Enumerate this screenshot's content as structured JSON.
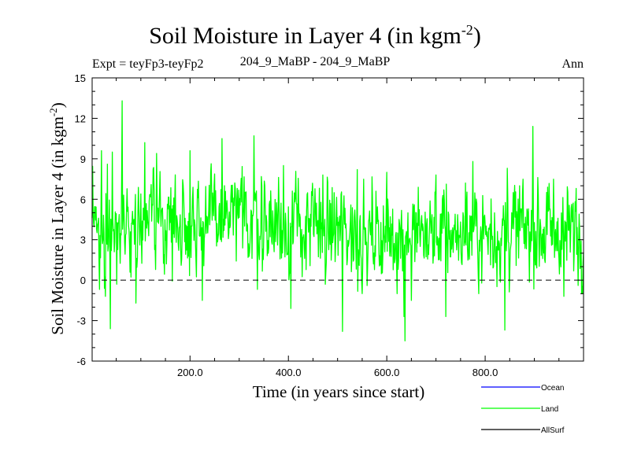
{
  "header": {
    "title_main": "Soil Moisture in Layer 4 (in kgm",
    "title_sup": "-2",
    "title_close": ")",
    "expt": "Expt = teyFp3-teyFp2",
    "period": "204_9_MaBP - 204_9_MaBP",
    "season": "Ann"
  },
  "chart_data": {
    "type": "line",
    "title": "Soil Moisture in Layer 4 (in kgm-2)",
    "xlabel": "Time (in years since start)",
    "ylabel_main": "Soil Moisture in Layer 4 (in kgm",
    "ylabel_sup": "-2",
    "ylabel_close": ")",
    "xlim": [
      1,
      1000
    ],
    "ylim": [
      -6,
      15
    ],
    "xticks": [
      200,
      400,
      600,
      800
    ],
    "xtick_labels": [
      "200.0",
      "400.0",
      "600.0",
      "800.0"
    ],
    "yticks": [
      -6,
      -3,
      0,
      3,
      6,
      9,
      12,
      15
    ],
    "ytick_labels": [
      "-6",
      "-3",
      "0",
      "3",
      "6",
      "9",
      "12",
      "15"
    ],
    "zero_line": "dashed",
    "legend": [
      {
        "name": "Ocean",
        "color": "#0000ff"
      },
      {
        "name": "Land",
        "color": "#00ff00"
      },
      {
        "name": "AllSurf",
        "color": "#000000"
      }
    ],
    "series": [
      {
        "name": "Land",
        "color": "#00ff00",
        "n_points": 1000,
        "mean_profile": [
          [
            1,
            3.9
          ],
          [
            100,
            4.4
          ],
          [
            200,
            4.4
          ],
          [
            300,
            4.6
          ],
          [
            400,
            4.0
          ],
          [
            500,
            3.7
          ],
          [
            600,
            3.3
          ],
          [
            700,
            3.5
          ],
          [
            800,
            3.4
          ],
          [
            900,
            3.8
          ],
          [
            1000,
            3.5
          ]
        ],
        "noise_sd": 2.0,
        "extremes": [
          [
            20,
            9.6
          ],
          [
            28,
            -1.2
          ],
          [
            32,
            8.6
          ],
          [
            38,
            -3.6
          ],
          [
            42,
            9.5
          ],
          [
            51,
            -0.3
          ],
          [
            62,
            13.3
          ],
          [
            90,
            -1.7
          ],
          [
            108,
            10.2
          ],
          [
            132,
            9.4
          ],
          [
            200,
            9.6
          ],
          [
            225,
            -1.5
          ],
          [
            265,
            10.5
          ],
          [
            330,
            10.7
          ],
          [
            390,
            8.5
          ],
          [
            405,
            -2.1
          ],
          [
            470,
            7.8
          ],
          [
            475,
            -0.3
          ],
          [
            510,
            -3.8
          ],
          [
            540,
            8.2
          ],
          [
            560,
            -0.4
          ],
          [
            600,
            8.0
          ],
          [
            635,
            -2.7
          ],
          [
            637,
            -4.5
          ],
          [
            650,
            -1.5
          ],
          [
            700,
            7.8
          ],
          [
            720,
            -2.7
          ],
          [
            760,
            7.2
          ],
          [
            775,
            8.8
          ],
          [
            840,
            -3.7
          ],
          [
            845,
            8.3
          ],
          [
            870,
            7.0
          ],
          [
            897,
            11.4
          ],
          [
            960,
            -1.2
          ],
          [
            985,
            6.8
          ]
        ]
      }
    ]
  }
}
